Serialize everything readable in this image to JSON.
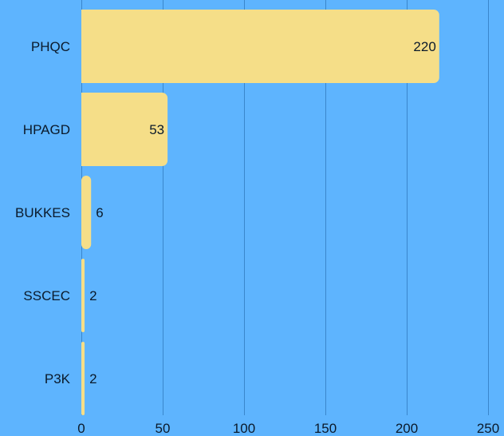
{
  "chart_data": {
    "type": "bar",
    "orientation": "horizontal",
    "title": "",
    "xlabel": "",
    "ylabel": "",
    "categories": [
      "PHQC",
      "HPAGD",
      "BUKKES",
      "SSCEC",
      "P3K"
    ],
    "values": [
      220,
      53,
      6,
      2,
      2
    ],
    "xlim": [
      0,
      250
    ],
    "x_ticks": [
      0,
      50,
      100,
      150,
      200,
      250
    ],
    "grid": true,
    "data_labels": true,
    "legend": "none",
    "colors": {
      "background": "#5eb4fe",
      "bar": "#f5de88",
      "gridline": "#3a86cc",
      "text": "#0b1a2b"
    }
  }
}
